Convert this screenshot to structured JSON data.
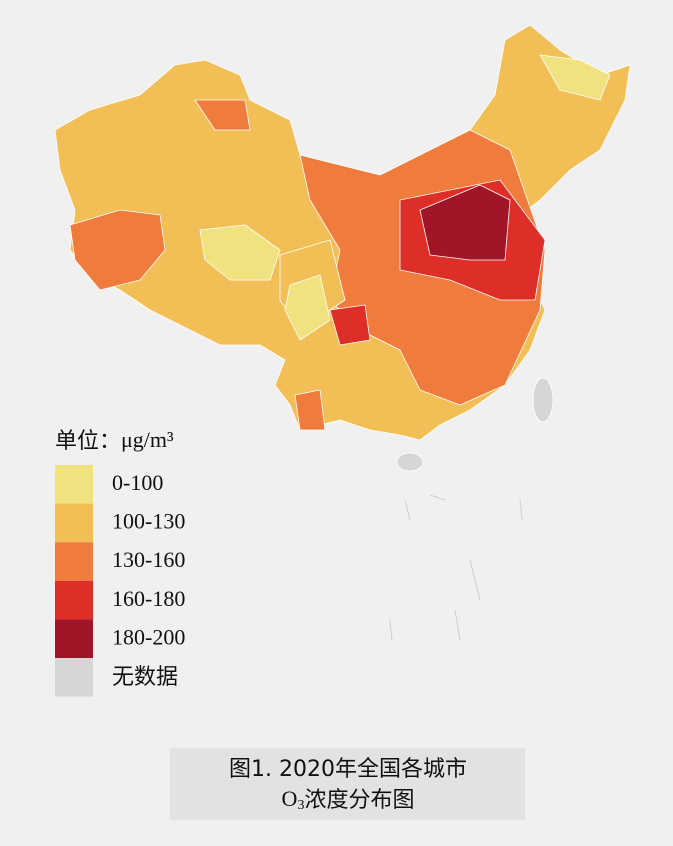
{
  "legend": {
    "title_label": "单位：",
    "title_unit": "μg/m³",
    "items": [
      {
        "label": "0-100",
        "color": "#efe27f"
      },
      {
        "label": "100-130",
        "color": "#f2bf57"
      },
      {
        "label": "130-160",
        "color": "#ef7b3d"
      },
      {
        "label": "160-180",
        "color": "#dd2f27"
      },
      {
        "label": "180-200",
        "color": "#a11528"
      },
      {
        "label": "无数据",
        "color": "#d6d6d6"
      }
    ]
  },
  "caption": {
    "line1": "图1. 2020年全国各城市",
    "line2_prefix": "O",
    "line2_sub": "3",
    "line2_suffix": "浓度分布图"
  }
}
